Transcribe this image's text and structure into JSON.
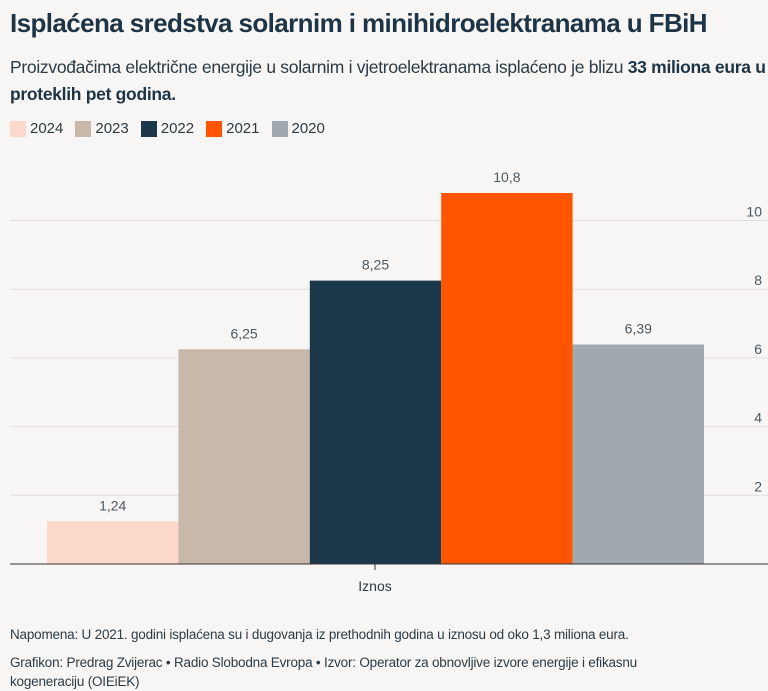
{
  "title": "Isplaćena sredstva solarnim i minihidroelektranama u FBiH",
  "subtitle": {
    "text": "Proizvođačima električne energije u solarnim i vjetroelektranama isplaćeno je blizu ",
    "bold": "33 miliona eura u proteklih pet godina."
  },
  "chart_data": {
    "type": "bar",
    "categories": [
      "Iznos"
    ],
    "series": [
      {
        "name": "2024",
        "values": [
          1.24
        ],
        "label": "1,24",
        "color": "#fbd8c9"
      },
      {
        "name": "2023",
        "values": [
          6.25
        ],
        "label": "6,25",
        "color": "#c8b8aa"
      },
      {
        "name": "2022",
        "values": [
          8.25
        ],
        "label": "8,25",
        "color": "#1b384a"
      },
      {
        "name": "2021",
        "values": [
          10.8
        ],
        "label": "10,8",
        "color": "#ff5500"
      },
      {
        "name": "2020",
        "values": [
          6.39
        ],
        "label": "6,39",
        "color": "#a0a9ae"
      }
    ],
    "yticks": [
      "2",
      "4",
      "6",
      "8",
      "10"
    ],
    "ylim": [
      0,
      12
    ],
    "yaxis_position": "right",
    "grid": true,
    "legend": "top-left"
  },
  "notes": {
    "napomena": "Napomena: U 2021. godini isplaćena su i dugovanja iz prethodnih godina u iznosu od oko 1,3 miliona eura.",
    "credit": "Grafikon: Predrag Zvijerac • Radio Slobodna Evropa • Izvor: Operator za obnovljive izvore energije i efikasnu kogeneraciju (OIEiEK)"
  }
}
